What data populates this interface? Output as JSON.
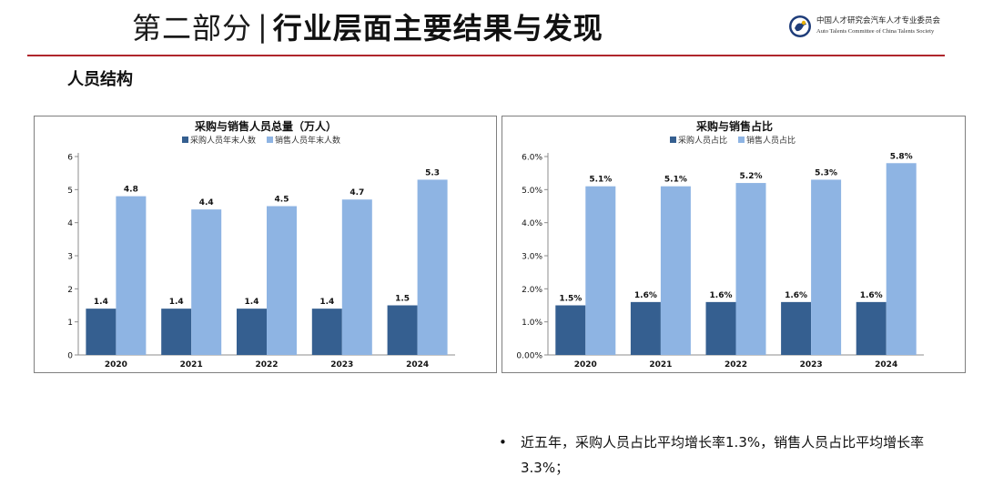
{
  "header": {
    "prefix": "第二部分",
    "separator": "|",
    "main": "行业层面主要结果与发现"
  },
  "org": {
    "name_cn": "中国人才研究会汽车人才专业委员会",
    "name_en": "Auto Talents Committee of China Talents Society"
  },
  "section": {
    "title": "人员结构"
  },
  "colors": {
    "dark": "#355f90",
    "light": "#8eb4e3",
    "rule": "#b0262c"
  },
  "chart_data": [
    {
      "type": "bar",
      "title": "采购与销售人员总量（万人）",
      "categories": [
        "2020",
        "2021",
        "2022",
        "2023",
        "2024"
      ],
      "series": [
        {
          "name": "采购人员年末人数",
          "values": [
            1.4,
            1.4,
            1.4,
            1.4,
            1.5
          ],
          "labels": [
            "1.4",
            "1.4",
            "1.4",
            "1.4",
            "1.5"
          ]
        },
        {
          "name": "销售人员年末人数",
          "values": [
            4.8,
            4.4,
            4.5,
            4.7,
            5.3
          ],
          "labels": [
            "4.8",
            "4.4",
            "4.5",
            "4.7",
            "5.3"
          ]
        }
      ],
      "ylim": [
        0,
        6
      ],
      "yticks": [
        "0",
        "1",
        "2",
        "3",
        "4",
        "5",
        "6"
      ],
      "legend": "top"
    },
    {
      "type": "bar",
      "title": "采购与销售占比",
      "categories": [
        "2020",
        "2021",
        "2022",
        "2023",
        "2024"
      ],
      "series": [
        {
          "name": "采购人员占比",
          "values": [
            1.5,
            1.6,
            1.6,
            1.6,
            1.6
          ],
          "labels": [
            "1.5%",
            "1.6%",
            "1.6%",
            "1.6%",
            "1.6%"
          ]
        },
        {
          "name": "销售人员占比",
          "values": [
            5.1,
            5.1,
            5.2,
            5.3,
            5.8
          ],
          "labels": [
            "5.1%",
            "5.1%",
            "5.2%",
            "5.3%",
            "5.8%"
          ]
        }
      ],
      "ylim": [
        0,
        6
      ],
      "yticks": [
        "0.00%",
        "1.0%",
        "2.0%",
        "3.0%",
        "4.0%",
        "5.0%",
        "6.0%"
      ],
      "legend": "top"
    }
  ],
  "bullets": [
    {
      "marker": "•",
      "text": "近五年，采购人员占比平均增长率1.3%，销售人员占比平均增长率3.3%；"
    }
  ]
}
